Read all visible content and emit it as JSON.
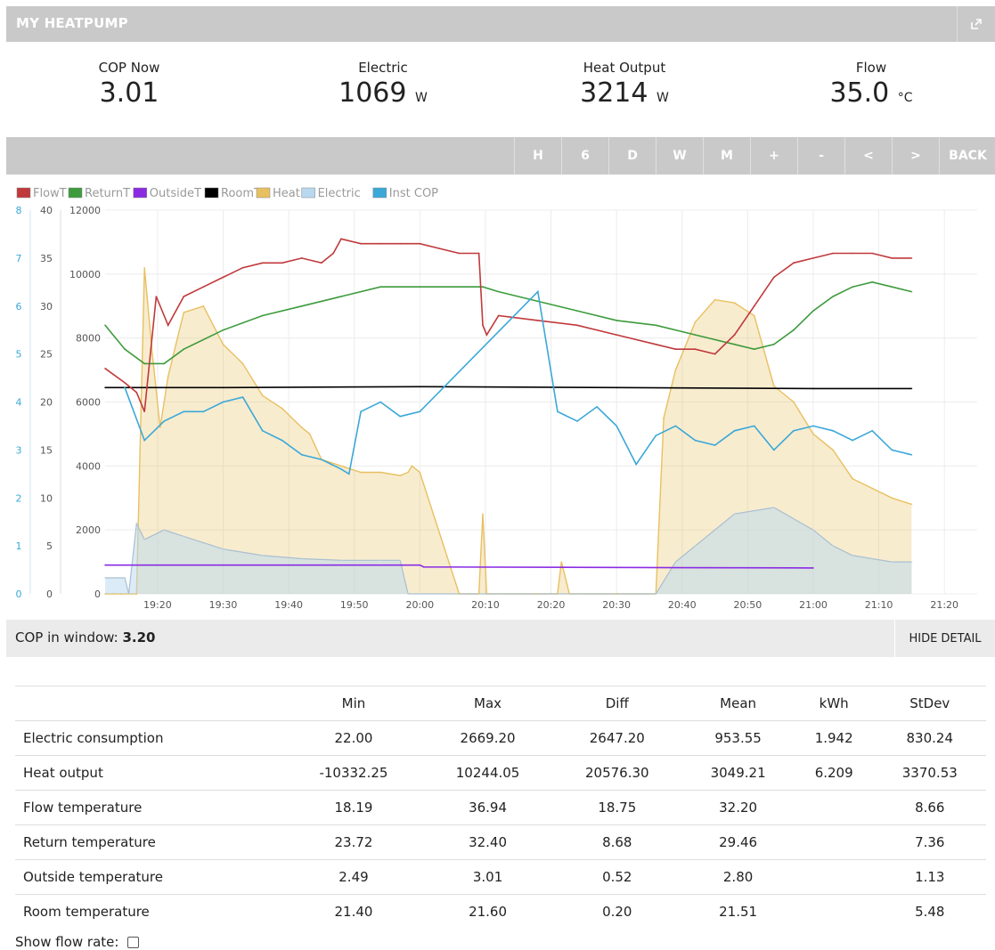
{
  "header": {
    "title": "MY HEATPUMP",
    "external_icon": "external-link-icon"
  },
  "stats": [
    {
      "label": "COP Now",
      "value": "3.01",
      "unit": ""
    },
    {
      "label": "Electric",
      "value": "1069",
      "unit": "W"
    },
    {
      "label": "Heat Output",
      "value": "3214",
      "unit": "W"
    },
    {
      "label": "Flow",
      "value": "35.0",
      "unit": "°C"
    }
  ],
  "controls": [
    "H",
    "6",
    "D",
    "W",
    "M",
    "+",
    "-",
    "<",
    ">",
    "BACK"
  ],
  "chart_data": {
    "type": "area",
    "legend": [
      {
        "name": "FlowT",
        "color": "#c0393b"
      },
      {
        "name": "ReturnT",
        "color": "#3d9b3d"
      },
      {
        "name": "OutsideT",
        "color": "#8a2be2"
      },
      {
        "name": "RoomT",
        "color": "#000000"
      },
      {
        "name": "Heat",
        "color": "#e8c060"
      },
      {
        "name": "Electric",
        "color": "#b8d8f0"
      },
      {
        "name": "Inst COP",
        "color": "#3ba8d8"
      }
    ],
    "axes": {
      "cop": {
        "ticks": [
          0,
          1,
          2,
          3,
          4,
          5,
          6,
          7,
          8
        ],
        "range": [
          0,
          8
        ]
      },
      "temperature": {
        "ticks": [
          0,
          5,
          10,
          15,
          20,
          25,
          30,
          35,
          40
        ],
        "range": [
          0,
          40
        ]
      },
      "power": {
        "ticks": [
          0,
          2000,
          4000,
          6000,
          8000,
          10000,
          12000
        ],
        "range": [
          0,
          12000
        ]
      },
      "x_ticks": [
        "19:20",
        "19:30",
        "19:40",
        "19:50",
        "20:00",
        "20:10",
        "20:20",
        "20:30",
        "20:40",
        "20:50",
        "21:00",
        "21:10",
        "21:20"
      ]
    },
    "series": [
      {
        "name": "FlowT",
        "x": [
          19.2,
          19.25,
          19.28,
          19.3,
          19.33,
          19.36,
          19.4,
          19.45,
          19.5,
          19.55,
          19.6,
          19.65,
          19.7,
          19.75,
          19.78,
          19.8,
          19.85,
          19.9,
          19.95,
          20.0,
          20.05,
          20.1,
          20.15,
          20.16,
          20.17,
          20.2,
          20.3,
          20.4,
          20.5,
          20.6,
          20.65,
          20.7,
          20.75,
          20.8,
          20.85,
          20.9,
          20.95,
          21.0,
          21.05,
          21.1,
          21.15,
          21.2,
          21.25
        ],
        "values": [
          23.5,
          22,
          21,
          19,
          31,
          28,
          31,
          32,
          33,
          34,
          34.5,
          34.5,
          35,
          34.5,
          35.5,
          37,
          36.5,
          36.5,
          36.5,
          36.5,
          36,
          35.5,
          35.5,
          28,
          27,
          29,
          28.5,
          28,
          27,
          26,
          25.5,
          25.5,
          25,
          27,
          30,
          33,
          34.5,
          35,
          35.5,
          35.5,
          35.5,
          35,
          35
        ]
      },
      {
        "name": "ReturnT",
        "x": [
          19.2,
          19.25,
          19.3,
          19.35,
          19.4,
          19.5,
          19.6,
          19.7,
          19.8,
          19.9,
          20.0,
          20.1,
          20.15,
          20.16,
          20.2,
          20.3,
          20.4,
          20.5,
          20.6,
          20.7,
          20.8,
          20.85,
          20.9,
          20.95,
          21.0,
          21.05,
          21.1,
          21.15,
          21.2,
          21.25
        ],
        "values": [
          28,
          25.5,
          24,
          24,
          25.5,
          27.5,
          29,
          30,
          31,
          32,
          32,
          32,
          32,
          32,
          31.5,
          30.5,
          29.5,
          28.5,
          28,
          27,
          26,
          25.5,
          26,
          27.5,
          29.5,
          31,
          32,
          32.5,
          32,
          31.5
        ]
      },
      {
        "name": "OutsideT",
        "x": [
          19.2,
          20.0,
          20.01,
          21.0
        ],
        "values": [
          3.0,
          3.0,
          2.8,
          2.7
        ]
      },
      {
        "name": "RoomT",
        "x": [
          19.2,
          19.5,
          20.0,
          20.5,
          21.0,
          21.25
        ],
        "values": [
          21.5,
          21.5,
          21.6,
          21.5,
          21.4,
          21.4
        ]
      },
      {
        "name": "Heat",
        "x": [
          19.2,
          19.22,
          19.24,
          19.26,
          19.28,
          19.3,
          19.32,
          19.34,
          19.36,
          19.38,
          19.4,
          19.45,
          19.5,
          19.55,
          19.6,
          19.65,
          19.7,
          19.72,
          19.75,
          19.8,
          19.85,
          19.9,
          19.95,
          19.97,
          19.98,
          20.0,
          20.1,
          20.15,
          20.16,
          20.17,
          20.2,
          20.3,
          20.35,
          20.36,
          20.38,
          20.4,
          20.5,
          20.6,
          20.62,
          20.65,
          20.7,
          20.75,
          20.8,
          20.85,
          20.9,
          20.95,
          21.0,
          21.05,
          21.1,
          21.15,
          21.2,
          21.25
        ],
        "values": [
          0,
          0,
          0,
          0,
          0,
          10200,
          7500,
          5200,
          6800,
          7800,
          8800,
          9000,
          7800,
          7200,
          6200,
          5800,
          5200,
          5000,
          4200,
          4000,
          3800,
          3800,
          3700,
          3800,
          4000,
          3800,
          0,
          0,
          2500,
          0,
          0,
          0,
          0,
          1000,
          0,
          0,
          0,
          0,
          5500,
          7000,
          8500,
          9200,
          9100,
          8700,
          6500,
          6000,
          5000,
          4500,
          3600,
          3300,
          3000,
          2800
        ]
      },
      {
        "name": "Electric",
        "x": [
          19.2,
          19.25,
          19.26,
          19.28,
          19.3,
          19.35,
          19.4,
          19.5,
          19.6,
          19.7,
          19.8,
          19.9,
          19.95,
          19.97,
          19.98,
          20.0,
          20.2,
          20.4,
          20.6,
          20.65,
          20.7,
          20.8,
          20.9,
          21.0,
          21.05,
          21.1,
          21.15,
          21.2,
          21.25
        ],
        "values": [
          500,
          500,
          0,
          2200,
          1700,
          2000,
          1800,
          1400,
          1200,
          1100,
          1050,
          1050,
          1050,
          0,
          0,
          0,
          0,
          0,
          0,
          1000,
          1500,
          2500,
          2700,
          2000,
          1500,
          1200,
          1100,
          1000,
          1000
        ]
      },
      {
        "name": "Inst COP",
        "x": [
          19.25,
          19.3,
          19.35,
          19.4,
          19.45,
          19.5,
          19.55,
          19.6,
          19.65,
          19.7,
          19.75,
          19.8,
          19.82,
          19.85,
          19.9,
          19.95,
          20.0,
          20.3,
          20.35,
          20.4,
          20.45,
          20.5,
          20.55,
          20.6,
          20.65,
          20.7,
          20.75,
          20.8,
          20.85,
          20.9,
          20.95,
          21.0,
          21.05,
          21.1,
          21.15,
          21.2,
          21.25
        ],
        "values": [
          4.3,
          3.2,
          3.6,
          3.8,
          3.8,
          4.0,
          4.1,
          3.4,
          3.2,
          2.9,
          2.8,
          2.6,
          2.5,
          3.8,
          4.0,
          3.7,
          3.8,
          6.3,
          3.8,
          3.6,
          3.9,
          3.5,
          2.7,
          3.3,
          3.5,
          3.2,
          3.1,
          3.4,
          3.5,
          3.0,
          3.4,
          3.5,
          3.4,
          3.2,
          3.4,
          3.0,
          2.9
        ]
      }
    ]
  },
  "cop_window": {
    "label": "COP in window:",
    "value": "3.20",
    "hide_label": "HIDE DETAIL"
  },
  "table": {
    "headers": [
      "",
      "Min",
      "Max",
      "Diff",
      "Mean",
      "kWh",
      "StDev"
    ],
    "rows": [
      {
        "name": "Electric consumption",
        "min": "22.00",
        "max": "2669.20",
        "diff": "2647.20",
        "mean": "953.55",
        "kwh": "1.942",
        "stdev": "830.24"
      },
      {
        "name": "Heat output",
        "min": "-10332.25",
        "max": "10244.05",
        "diff": "20576.30",
        "mean": "3049.21",
        "kwh": "6.209",
        "stdev": "3370.53"
      },
      {
        "name": "Flow temperature",
        "min": "18.19",
        "max": "36.94",
        "diff": "18.75",
        "mean": "32.20",
        "kwh": "",
        "stdev": "8.66"
      },
      {
        "name": "Return temperature",
        "min": "23.72",
        "max": "32.40",
        "diff": "8.68",
        "mean": "29.46",
        "kwh": "",
        "stdev": "7.36"
      },
      {
        "name": "Outside temperature",
        "min": "2.49",
        "max": "3.01",
        "diff": "0.52",
        "mean": "2.80",
        "kwh": "",
        "stdev": "1.13"
      },
      {
        "name": "Room temperature",
        "min": "21.40",
        "max": "21.60",
        "diff": "0.20",
        "mean": "21.51",
        "kwh": "",
        "stdev": "5.48"
      }
    ]
  },
  "show_flow": {
    "label": "Show flow rate:"
  }
}
